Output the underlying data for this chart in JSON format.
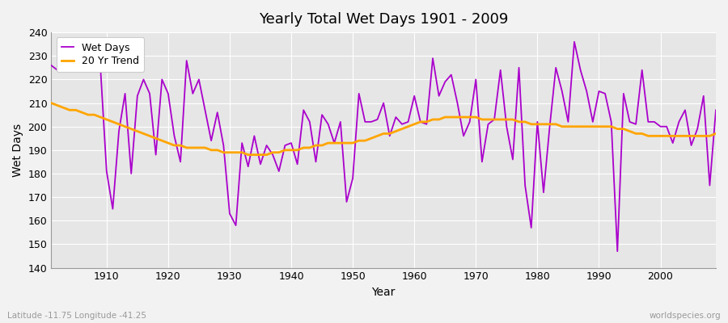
{
  "title": "Yearly Total Wet Days 1901 - 2009",
  "ylabel": "Wet Days",
  "xlabel": "Year",
  "footnote_left": "Latitude -11.75 Longitude -41.25",
  "footnote_right": "worldspecies.org",
  "legend_wet": "Wet Days",
  "legend_trend": "20 Yr Trend",
  "wet_color": "#AA00CC",
  "trend_color": "#FFA500",
  "bg_color": "#F0F0F0",
  "plot_bg_color": "#E0E0E0",
  "ylim": [
    140,
    240
  ],
  "yticks": [
    140,
    150,
    160,
    170,
    180,
    190,
    200,
    210,
    220,
    230,
    240
  ],
  "xticks": [
    1910,
    1920,
    1930,
    1940,
    1950,
    1960,
    1970,
    1980,
    1990,
    2000
  ],
  "years": [
    1901,
    1902,
    1903,
    1904,
    1905,
    1906,
    1907,
    1908,
    1909,
    1910,
    1911,
    1912,
    1913,
    1914,
    1915,
    1916,
    1917,
    1918,
    1919,
    1920,
    1921,
    1922,
    1923,
    1924,
    1925,
    1926,
    1927,
    1928,
    1929,
    1930,
    1931,
    1932,
    1933,
    1934,
    1935,
    1936,
    1937,
    1938,
    1939,
    1940,
    1941,
    1942,
    1943,
    1944,
    1945,
    1946,
    1947,
    1948,
    1949,
    1950,
    1951,
    1952,
    1953,
    1954,
    1955,
    1956,
    1957,
    1958,
    1959,
    1960,
    1961,
    1962,
    1963,
    1964,
    1965,
    1966,
    1967,
    1968,
    1969,
    1970,
    1971,
    1972,
    1973,
    1974,
    1975,
    1976,
    1977,
    1978,
    1979,
    1980,
    1981,
    1982,
    1983,
    1984,
    1985,
    1986,
    1987,
    1988,
    1989,
    1990,
    1991,
    1992,
    1993,
    1994,
    1995,
    1996,
    1997,
    1998,
    1999,
    2000,
    2001,
    2002,
    2003,
    2004,
    2005,
    2006,
    2007,
    2008,
    2009
  ],
  "wet_days": [
    226,
    224,
    230,
    228,
    226,
    228,
    225,
    226,
    225,
    181,
    165,
    198,
    214,
    180,
    213,
    220,
    214,
    188,
    220,
    214,
    196,
    185,
    228,
    214,
    220,
    207,
    194,
    206,
    192,
    163,
    158,
    193,
    183,
    196,
    184,
    192,
    188,
    181,
    192,
    193,
    184,
    207,
    202,
    185,
    205,
    201,
    193,
    202,
    168,
    178,
    214,
    202,
    202,
    203,
    210,
    196,
    204,
    201,
    202,
    213,
    202,
    201,
    229,
    213,
    219,
    222,
    210,
    196,
    202,
    220,
    185,
    201,
    203,
    224,
    200,
    186,
    225,
    175,
    157,
    202,
    172,
    200,
    225,
    215,
    202,
    236,
    224,
    215,
    202,
    215,
    214,
    202,
    147,
    214,
    202,
    201,
    224,
    202,
    202,
    200,
    200,
    193,
    202,
    207,
    192,
    199,
    213,
    175,
    207
  ],
  "trend_data": [
    [
      1901,
      210
    ],
    [
      1902,
      209
    ],
    [
      1903,
      208
    ],
    [
      1904,
      207
    ],
    [
      1905,
      207
    ],
    [
      1906,
      206
    ],
    [
      1907,
      205
    ],
    [
      1908,
      205
    ],
    [
      1909,
      204
    ],
    [
      1910,
      203
    ],
    [
      1911,
      202
    ],
    [
      1912,
      201
    ],
    [
      1913,
      200
    ],
    [
      1914,
      199
    ],
    [
      1915,
      198
    ],
    [
      1916,
      197
    ],
    [
      1917,
      196
    ],
    [
      1918,
      195
    ],
    [
      1919,
      194
    ],
    [
      1920,
      193
    ],
    [
      1921,
      192
    ],
    [
      1922,
      192
    ],
    [
      1923,
      191
    ],
    [
      1924,
      191
    ],
    [
      1925,
      191
    ],
    [
      1926,
      191
    ],
    [
      1927,
      190
    ],
    [
      1928,
      190
    ],
    [
      1929,
      189
    ],
    [
      1930,
      189
    ],
    [
      1931,
      189
    ],
    [
      1932,
      189
    ],
    [
      1933,
      188
    ],
    [
      1934,
      188
    ],
    [
      1935,
      188
    ],
    [
      1936,
      188
    ],
    [
      1937,
      189
    ],
    [
      1938,
      189
    ],
    [
      1939,
      190
    ],
    [
      1940,
      190
    ],
    [
      1941,
      190
    ],
    [
      1942,
      191
    ],
    [
      1943,
      191
    ],
    [
      1944,
      192
    ],
    [
      1945,
      192
    ],
    [
      1946,
      193
    ],
    [
      1947,
      193
    ],
    [
      1948,
      193
    ],
    [
      1949,
      193
    ],
    [
      1950,
      193
    ],
    [
      1951,
      194
    ],
    [
      1952,
      194
    ],
    [
      1953,
      195
    ],
    [
      1954,
      196
    ],
    [
      1955,
      197
    ],
    [
      1956,
      197
    ],
    [
      1957,
      198
    ],
    [
      1958,
      199
    ],
    [
      1959,
      200
    ],
    [
      1960,
      201
    ],
    [
      1961,
      202
    ],
    [
      1962,
      202
    ],
    [
      1963,
      203
    ],
    [
      1964,
      203
    ],
    [
      1965,
      204
    ],
    [
      1966,
      204
    ],
    [
      1967,
      204
    ],
    [
      1968,
      204
    ],
    [
      1969,
      204
    ],
    [
      1970,
      204
    ],
    [
      1971,
      203
    ],
    [
      1972,
      203
    ],
    [
      1973,
      203
    ],
    [
      1974,
      203
    ],
    [
      1975,
      203
    ],
    [
      1976,
      203
    ],
    [
      1977,
      202
    ],
    [
      1978,
      202
    ],
    [
      1979,
      201
    ],
    [
      1980,
      201
    ],
    [
      1981,
      201
    ],
    [
      1982,
      201
    ],
    [
      1983,
      201
    ],
    [
      1984,
      200
    ],
    [
      1985,
      200
    ],
    [
      1986,
      200
    ],
    [
      1987,
      200
    ],
    [
      1988,
      200
    ],
    [
      1989,
      200
    ],
    [
      1990,
      200
    ],
    [
      1991,
      200
    ],
    [
      1992,
      200
    ],
    [
      1993,
      199
    ],
    [
      1994,
      199
    ],
    [
      1995,
      198
    ],
    [
      1996,
      197
    ],
    [
      1997,
      197
    ],
    [
      1998,
      196
    ],
    [
      1999,
      196
    ],
    [
      2000,
      196
    ],
    [
      2001,
      196
    ],
    [
      2002,
      196
    ],
    [
      2003,
      196
    ],
    [
      2004,
      196
    ],
    [
      2005,
      196
    ],
    [
      2006,
      196
    ],
    [
      2007,
      196
    ],
    [
      2008,
      196
    ],
    [
      2009,
      197
    ]
  ]
}
